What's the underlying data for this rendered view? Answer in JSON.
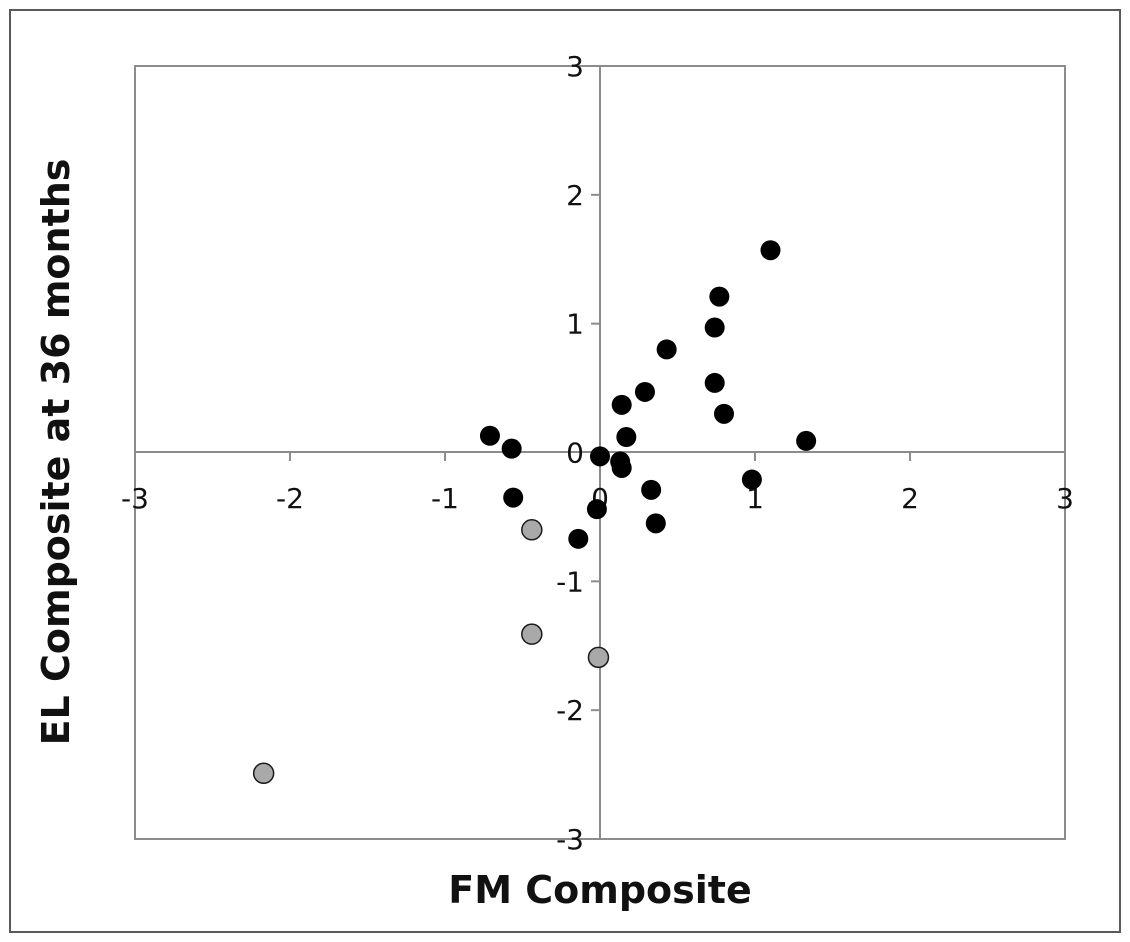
{
  "chart_data": {
    "type": "scatter",
    "title": "",
    "xlabel": "FM Composite",
    "ylabel": "EL Composite at 36 months",
    "xlim": [
      -3,
      3
    ],
    "ylim": [
      -3,
      3
    ],
    "x_ticks": [
      "-3",
      "-2",
      "-1",
      "0",
      "1",
      "2",
      "3"
    ],
    "y_ticks": [
      "3",
      "2",
      "1",
      "0",
      "-1",
      "-2",
      "-3"
    ],
    "grid": false,
    "legend": "none",
    "series": [
      {
        "color": "#000000",
        "points": [
          {
            "x": 1.1,
            "y": 1.57
          },
          {
            "x": 0.77,
            "y": 1.21
          },
          {
            "x": 0.74,
            "y": 0.97
          },
          {
            "x": 0.43,
            "y": 0.8
          },
          {
            "x": 0.74,
            "y": 0.54
          },
          {
            "x": 0.29,
            "y": 0.47
          },
          {
            "x": 0.8,
            "y": 0.3
          },
          {
            "x": 0.14,
            "y": 0.37
          },
          {
            "x": 0.17,
            "y": 0.12
          },
          {
            "x": 1.33,
            "y": 0.09
          },
          {
            "x": -0.71,
            "y": 0.13
          },
          {
            "x": -0.57,
            "y": 0.03
          },
          {
            "x": 0.0,
            "y": -0.03
          },
          {
            "x": 0.13,
            "y": -0.07
          },
          {
            "x": 0.14,
            "y": -0.12
          },
          {
            "x": 0.98,
            "y": -0.21
          },
          {
            "x": 0.33,
            "y": -0.29
          },
          {
            "x": -0.56,
            "y": -0.35
          },
          {
            "x": -0.02,
            "y": -0.44
          },
          {
            "x": 0.36,
            "y": -0.55
          },
          {
            "x": -0.14,
            "y": -0.67
          }
        ]
      },
      {
        "color": "#a9a9a9",
        "points": [
          {
            "x": -0.44,
            "y": -0.6
          },
          {
            "x": -0.44,
            "y": -1.41
          },
          {
            "x": -0.01,
            "y": -1.59
          },
          {
            "x": -2.17,
            "y": -2.49
          }
        ]
      }
    ]
  }
}
